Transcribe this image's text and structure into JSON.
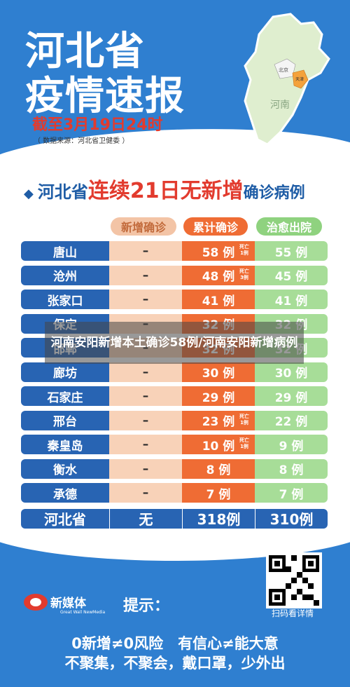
{
  "header": {
    "title_line1": "河北省",
    "title_line2": "疫情速报",
    "date": "截至3月19日24时",
    "source": "（ 数据来源：河北省卫健委 ）",
    "map_label_henan": "河南",
    "map_label_beijing": "北京",
    "map_label_tianjin": "天津"
  },
  "subtitle": {
    "diamond": "◆",
    "part1": "河北省",
    "part2": "连续21日无新增",
    "part3": "确诊病例"
  },
  "columns": {
    "new": "新增确诊",
    "total": "累计确诊",
    "cured": "治愈出院"
  },
  "rows": [
    {
      "city": "唐山",
      "new": "–",
      "total": "58 例",
      "death": "死亡\n1例",
      "cured": "55 例"
    },
    {
      "city": "沧州",
      "new": "–",
      "total": "48 例",
      "death": "死亡\n3例",
      "cured": "45 例"
    },
    {
      "city": "张家口",
      "new": "–",
      "total": "41 例",
      "death": "",
      "cured": "41 例"
    },
    {
      "city": "保定",
      "new": "–",
      "total": "32 例",
      "death": "",
      "cured": "32 例"
    },
    {
      "city": "邯郸",
      "new": "–",
      "total": "32 例",
      "death": "",
      "cured": "32 例"
    },
    {
      "city": "廊坊",
      "new": "–",
      "total": "30 例",
      "death": "",
      "cured": "30 例"
    },
    {
      "city": "石家庄",
      "new": "–",
      "total": "29 例",
      "death": "",
      "cured": "29 例"
    },
    {
      "city": "邢台",
      "new": "–",
      "total": "23 例",
      "death": "死亡\n1例",
      "cured": "22 例"
    },
    {
      "city": "秦皇岛",
      "new": "–",
      "total": "10 例",
      "death": "死亡\n1例",
      "cured": "9 例"
    },
    {
      "city": "衡水",
      "new": "–",
      "total": "8 例",
      "death": "",
      "cured": "8 例"
    },
    {
      "city": "承德",
      "new": "–",
      "total": "7 例",
      "death": "",
      "cured": "7 例"
    }
  ],
  "total_row": {
    "city": "河北省",
    "new": "无",
    "total": "318例",
    "cured": "310例"
  },
  "overlay_caption": "河南安阳新增本土确诊58例/河南安阳新增病例",
  "footer": {
    "logo_text": "新媒体",
    "logo_sub": "Great Wall NewMedia",
    "tips": "提示：",
    "qr_label": "扫码看详情",
    "slogan1": "0新增≠0风险　有信心≠能大意",
    "slogan2": "不聚集，不聚会，戴口罩，少外出"
  },
  "colors": {
    "blue": "#2f7fd0",
    "red": "#e23b2e",
    "orange": "#ef6c34",
    "green": "#a7dd98",
    "peach": "#f8d2b8",
    "navy": "#2864b3"
  }
}
